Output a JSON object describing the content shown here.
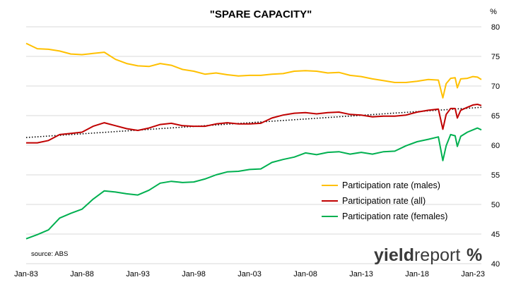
{
  "chart_data": {
    "type": "line",
    "title": "\"SPARE CAPACITY\"",
    "yunit": "%",
    "ylim": [
      40,
      80
    ],
    "yticks": [
      40,
      45,
      50,
      55,
      60,
      65,
      70,
      75,
      80
    ],
    "xlim": [
      1983.0,
      2023.75
    ],
    "xticks": [
      {
        "x": 1983,
        "label": "Jan-83"
      },
      {
        "x": 1988,
        "label": "Jan-88"
      },
      {
        "x": 1993,
        "label": "Jan-93"
      },
      {
        "x": 1998,
        "label": "Jan-98"
      },
      {
        "x": 2003,
        "label": "Jan-03"
      },
      {
        "x": 2008,
        "label": "Jan-08"
      },
      {
        "x": 2013,
        "label": "Jan-13"
      },
      {
        "x": 2018,
        "label": "Jan-18"
      },
      {
        "x": 2023,
        "label": "Jan-23"
      }
    ],
    "grid": "horizontal",
    "legend_position": "bottom-right",
    "source": "source: ABS",
    "series": [
      {
        "name": "Participation rate (males)",
        "color": "#FFC000",
        "points": [
          [
            1983.0,
            77.2
          ],
          [
            1984.0,
            76.3
          ],
          [
            1985.0,
            76.2
          ],
          [
            1986.0,
            75.9
          ],
          [
            1987.0,
            75.4
          ],
          [
            1988.0,
            75.3
          ],
          [
            1989.0,
            75.5
          ],
          [
            1990.0,
            75.7
          ],
          [
            1991.0,
            74.5
          ],
          [
            1992.0,
            73.8
          ],
          [
            1993.0,
            73.4
          ],
          [
            1994.0,
            73.3
          ],
          [
            1995.0,
            73.8
          ],
          [
            1996.0,
            73.5
          ],
          [
            1997.0,
            72.8
          ],
          [
            1998.0,
            72.5
          ],
          [
            1999.0,
            72.0
          ],
          [
            2000.0,
            72.2
          ],
          [
            2001.0,
            71.9
          ],
          [
            2002.0,
            71.7
          ],
          [
            2003.0,
            71.8
          ],
          [
            2004.0,
            71.8
          ],
          [
            2005.0,
            72.0
          ],
          [
            2006.0,
            72.1
          ],
          [
            2007.0,
            72.5
          ],
          [
            2008.0,
            72.6
          ],
          [
            2009.0,
            72.5
          ],
          [
            2010.0,
            72.2
          ],
          [
            2011.0,
            72.3
          ],
          [
            2012.0,
            71.8
          ],
          [
            2013.0,
            71.6
          ],
          [
            2014.0,
            71.2
          ],
          [
            2015.0,
            70.9
          ],
          [
            2016.0,
            70.6
          ],
          [
            2017.0,
            70.6
          ],
          [
            2018.0,
            70.8
          ],
          [
            2019.0,
            71.1
          ],
          [
            2019.9,
            71.0
          ],
          [
            2020.3,
            68.0
          ],
          [
            2020.6,
            70.4
          ],
          [
            2021.0,
            71.3
          ],
          [
            2021.4,
            71.4
          ],
          [
            2021.6,
            69.7
          ],
          [
            2021.9,
            71.2
          ],
          [
            2022.5,
            71.3
          ],
          [
            2023.0,
            71.6
          ],
          [
            2023.4,
            71.5
          ],
          [
            2023.75,
            71.1
          ]
        ]
      },
      {
        "name": "Participation rate (all)",
        "color": "#C00000",
        "points": [
          [
            1983.0,
            60.4
          ],
          [
            1984.0,
            60.4
          ],
          [
            1985.0,
            60.8
          ],
          [
            1986.0,
            61.8
          ],
          [
            1987.0,
            62.0
          ],
          [
            1988.0,
            62.2
          ],
          [
            1989.0,
            63.2
          ],
          [
            1990.0,
            63.8
          ],
          [
            1991.0,
            63.3
          ],
          [
            1992.0,
            62.8
          ],
          [
            1993.0,
            62.5
          ],
          [
            1994.0,
            62.9
          ],
          [
            1995.0,
            63.5
          ],
          [
            1996.0,
            63.7
          ],
          [
            1997.0,
            63.3
          ],
          [
            1998.0,
            63.2
          ],
          [
            1999.0,
            63.2
          ],
          [
            2000.0,
            63.6
          ],
          [
            2001.0,
            63.8
          ],
          [
            2002.0,
            63.6
          ],
          [
            2003.0,
            63.6
          ],
          [
            2004.0,
            63.7
          ],
          [
            2005.0,
            64.6
          ],
          [
            2006.0,
            65.1
          ],
          [
            2007.0,
            65.4
          ],
          [
            2008.0,
            65.5
          ],
          [
            2009.0,
            65.3
          ],
          [
            2010.0,
            65.5
          ],
          [
            2011.0,
            65.6
          ],
          [
            2012.0,
            65.2
          ],
          [
            2013.0,
            65.1
          ],
          [
            2014.0,
            64.8
          ],
          [
            2015.0,
            64.9
          ],
          [
            2016.0,
            64.9
          ],
          [
            2017.0,
            65.1
          ],
          [
            2018.0,
            65.6
          ],
          [
            2019.0,
            65.9
          ],
          [
            2019.9,
            66.1
          ],
          [
            2020.3,
            62.7
          ],
          [
            2020.6,
            65.2
          ],
          [
            2021.0,
            66.2
          ],
          [
            2021.4,
            66.2
          ],
          [
            2021.6,
            64.6
          ],
          [
            2021.9,
            65.9
          ],
          [
            2022.5,
            66.4
          ],
          [
            2023.0,
            66.8
          ],
          [
            2023.4,
            66.9
          ],
          [
            2023.75,
            66.7
          ]
        ]
      },
      {
        "name": "Participation rate (females)",
        "color": "#00B050",
        "points": [
          [
            1983.0,
            44.2
          ],
          [
            1984.0,
            44.9
          ],
          [
            1985.0,
            45.7
          ],
          [
            1986.0,
            47.7
          ],
          [
            1987.0,
            48.5
          ],
          [
            1988.0,
            49.2
          ],
          [
            1989.0,
            50.9
          ],
          [
            1990.0,
            52.3
          ],
          [
            1991.0,
            52.1
          ],
          [
            1992.0,
            51.8
          ],
          [
            1993.0,
            51.6
          ],
          [
            1994.0,
            52.4
          ],
          [
            1995.0,
            53.6
          ],
          [
            1996.0,
            53.9
          ],
          [
            1997.0,
            53.7
          ],
          [
            1998.0,
            53.8
          ],
          [
            1999.0,
            54.3
          ],
          [
            2000.0,
            55.0
          ],
          [
            2001.0,
            55.5
          ],
          [
            2002.0,
            55.6
          ],
          [
            2003.0,
            55.9
          ],
          [
            2004.0,
            56.0
          ],
          [
            2005.0,
            57.1
          ],
          [
            2006.0,
            57.6
          ],
          [
            2007.0,
            58.0
          ],
          [
            2008.0,
            58.7
          ],
          [
            2009.0,
            58.4
          ],
          [
            2010.0,
            58.8
          ],
          [
            2011.0,
            58.9
          ],
          [
            2012.0,
            58.5
          ],
          [
            2013.0,
            58.8
          ],
          [
            2014.0,
            58.5
          ],
          [
            2015.0,
            58.9
          ],
          [
            2016.0,
            59.0
          ],
          [
            2017.0,
            59.9
          ],
          [
            2018.0,
            60.6
          ],
          [
            2019.0,
            61.0
          ],
          [
            2019.9,
            61.4
          ],
          [
            2020.3,
            57.4
          ],
          [
            2020.6,
            59.9
          ],
          [
            2021.0,
            61.8
          ],
          [
            2021.4,
            61.6
          ],
          [
            2021.6,
            59.8
          ],
          [
            2021.9,
            61.5
          ],
          [
            2022.5,
            62.2
          ],
          [
            2023.0,
            62.6
          ],
          [
            2023.4,
            62.9
          ],
          [
            2023.75,
            62.6
          ]
        ]
      }
    ],
    "trendline": {
      "style": "dotted",
      "color": "#000000",
      "points": [
        [
          1983.0,
          61.3
        ],
        [
          2023.75,
          66.4
        ]
      ]
    }
  },
  "logo": {
    "part1": "yield",
    "part2": "report",
    "mark": "%"
  }
}
